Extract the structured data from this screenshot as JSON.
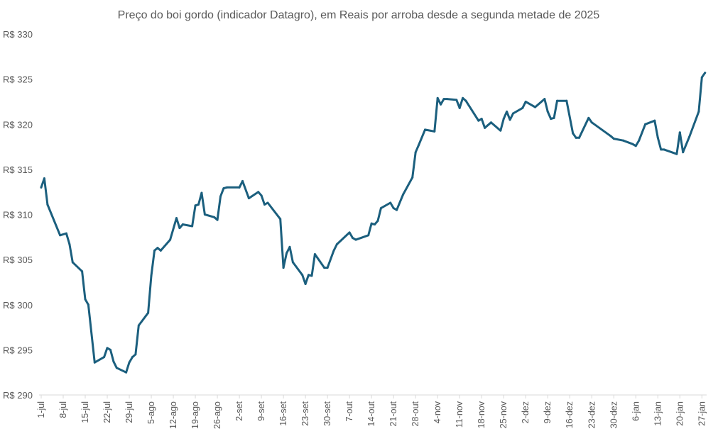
{
  "chart_data": {
    "type": "line",
    "title": "Preço do boi gordo (indicador Datagro), em Reais por arroba desde a segunda metade de 2025",
    "xlabel": "",
    "ylabel": "",
    "ylim": [
      290,
      330
    ],
    "y_ticks": [
      "R$ 290",
      "R$ 295",
      "R$ 300",
      "R$ 305",
      "R$ 310",
      "R$ 315",
      "R$ 320",
      "R$ 325",
      "R$ 330"
    ],
    "y_tick_values": [
      290,
      295,
      300,
      305,
      310,
      315,
      320,
      325,
      330
    ],
    "x_ticks": [
      "1-jul",
      "8-jul",
      "15-jul",
      "22-jul",
      "29-jul",
      "5-ago",
      "12-ago",
      "19-ago",
      "26-ago",
      "2-set",
      "9-set",
      "16-set",
      "23-set",
      "30-set",
      "7-out",
      "14-out",
      "21-out",
      "28-out",
      "4-nov",
      "11-nov",
      "18-nov",
      "25-nov",
      "2-dez",
      "9-dez",
      "16-dez",
      "23-dez",
      "30-dez",
      "6-jan",
      "13-jan",
      "20-jan",
      "27-jan"
    ],
    "x_tick_dates": [
      "2025-07-01",
      "2025-07-08",
      "2025-07-15",
      "2025-07-22",
      "2025-07-29",
      "2025-08-05",
      "2025-08-12",
      "2025-08-19",
      "2025-08-26",
      "2025-09-02",
      "2025-09-09",
      "2025-09-16",
      "2025-09-23",
      "2025-09-30",
      "2025-10-07",
      "2025-10-14",
      "2025-10-21",
      "2025-10-28",
      "2025-11-04",
      "2025-11-11",
      "2025-11-18",
      "2025-11-25",
      "2025-12-02",
      "2025-12-09",
      "2025-12-16",
      "2025-12-23",
      "2025-12-30",
      "2026-01-06",
      "2026-01-13",
      "2026-01-20",
      "2026-01-27"
    ],
    "grid": false,
    "line_color": "#1b5f7e",
    "series": [
      {
        "x": [
          "2025-07-01",
          "2025-07-02",
          "2025-07-03",
          "2025-07-07",
          "2025-07-09",
          "2025-07-10",
          "2025-07-11",
          "2025-07-14",
          "2025-07-15",
          "2025-07-16",
          "2025-07-18",
          "2025-07-21",
          "2025-07-22",
          "2025-07-23",
          "2025-07-24",
          "2025-07-25",
          "2025-07-28",
          "2025-07-29",
          "2025-07-30",
          "2025-07-31",
          "2025-08-01",
          "2025-08-04",
          "2025-08-05",
          "2025-08-06",
          "2025-08-07",
          "2025-08-08",
          "2025-08-11",
          "2025-08-13",
          "2025-08-14",
          "2025-08-15",
          "2025-08-18",
          "2025-08-19",
          "2025-08-20",
          "2025-08-21",
          "2025-08-22",
          "2025-08-25",
          "2025-08-26",
          "2025-08-27",
          "2025-08-28",
          "2025-08-29",
          "2025-09-02",
          "2025-09-03",
          "2025-09-05",
          "2025-09-08",
          "2025-09-09",
          "2025-09-10",
          "2025-09-11",
          "2025-09-15",
          "2025-09-16",
          "2025-09-17",
          "2025-09-18",
          "2025-09-19",
          "2025-09-22",
          "2025-09-23",
          "2025-09-24",
          "2025-09-25",
          "2025-09-26",
          "2025-09-29",
          "2025-09-30",
          "2025-10-02",
          "2025-10-03",
          "2025-10-07",
          "2025-10-08",
          "2025-10-09",
          "2025-10-13",
          "2025-10-14",
          "2025-10-15",
          "2025-10-16",
          "2025-10-17",
          "2025-10-20",
          "2025-10-21",
          "2025-10-22",
          "2025-10-24",
          "2025-10-27",
          "2025-10-28",
          "2025-10-29",
          "2025-10-31",
          "2025-11-03",
          "2025-11-04",
          "2025-11-05",
          "2025-11-06",
          "2025-11-07",
          "2025-11-10",
          "2025-11-11",
          "2025-11-12",
          "2025-11-13",
          "2025-11-17",
          "2025-11-18",
          "2025-11-19",
          "2025-11-21",
          "2025-11-24",
          "2025-11-25",
          "2025-11-26",
          "2025-11-27",
          "2025-11-28",
          "2025-12-01",
          "2025-12-02",
          "2025-12-05",
          "2025-12-08",
          "2025-12-09",
          "2025-12-10",
          "2025-12-11",
          "2025-12-12",
          "2025-12-15",
          "2025-12-17",
          "2025-12-18",
          "2025-12-19",
          "2025-12-22",
          "2025-12-23",
          "2025-12-29",
          "2025-12-30",
          "2026-01-02",
          "2026-01-05",
          "2026-01-06",
          "2026-01-07",
          "2026-01-09",
          "2026-01-12",
          "2026-01-13",
          "2026-01-14",
          "2026-01-15",
          "2026-01-19",
          "2026-01-20",
          "2026-01-21",
          "2026-01-23",
          "2026-01-26",
          "2026-01-27",
          "2026-01-28"
        ],
        "values": [
          313.0,
          314.0,
          311.1,
          307.7,
          307.9,
          306.7,
          304.7,
          303.7,
          300.6,
          300.0,
          293.6,
          294.2,
          295.2,
          295.0,
          293.7,
          293.0,
          292.5,
          293.6,
          294.2,
          294.5,
          297.7,
          299.1,
          303.2,
          306.0,
          306.3,
          306.0,
          307.2,
          309.6,
          308.5,
          308.9,
          308.7,
          311.0,
          311.1,
          312.4,
          310.0,
          309.7,
          309.4,
          312.0,
          312.9,
          313.0,
          313.0,
          313.7,
          311.8,
          312.5,
          312.1,
          311.1,
          311.3,
          309.5,
          304.1,
          305.7,
          306.4,
          304.7,
          303.3,
          302.3,
          303.3,
          303.2,
          305.6,
          304.1,
          304.1,
          306.0,
          306.7,
          308.0,
          307.4,
          307.2,
          307.7,
          309.0,
          308.9,
          309.3,
          310.7,
          311.3,
          310.7,
          310.5,
          312.2,
          314.1,
          316.9,
          317.7,
          319.4,
          319.2,
          322.9,
          322.2,
          322.8,
          322.8,
          322.7,
          321.8,
          322.9,
          322.6,
          320.4,
          320.6,
          319.6,
          320.2,
          319.3,
          320.6,
          321.4,
          320.5,
          321.2,
          321.8,
          322.5,
          321.9,
          322.8,
          321.4,
          320.6,
          320.7,
          322.6,
          322.6,
          319.0,
          318.5,
          318.5,
          320.7,
          320.2,
          318.7,
          318.4,
          318.2,
          317.8,
          317.6,
          318.2,
          320.0,
          320.4,
          318.5,
          317.2,
          317.2,
          316.7,
          319.1,
          316.9,
          318.6,
          321.4,
          325.2,
          325.7
        ]
      }
    ]
  }
}
